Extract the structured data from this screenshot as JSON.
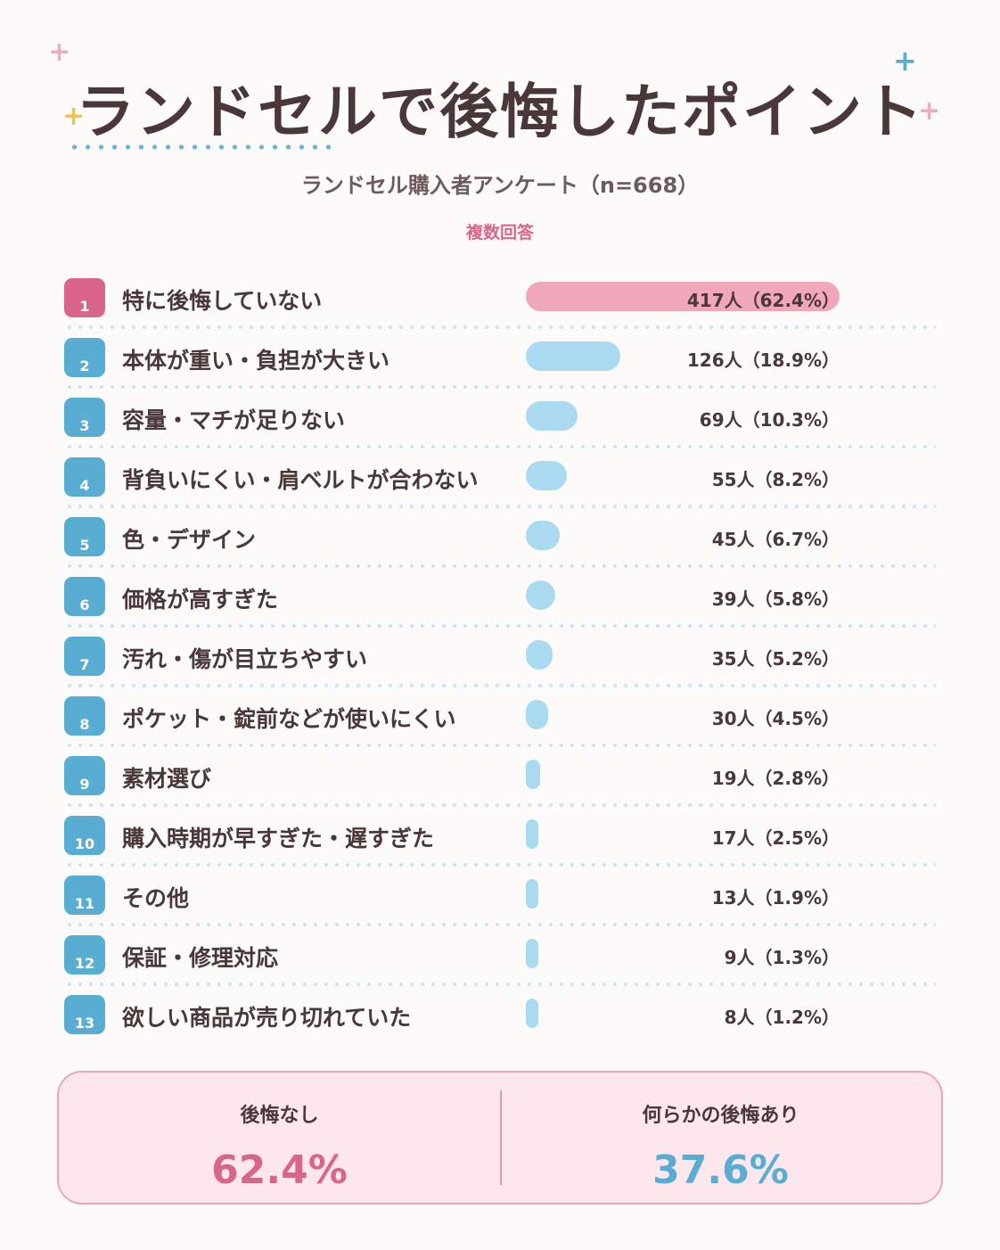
{
  "title": "ランドセルで後悔したポイント",
  "subtitle": "ランドセル購入者アンケート（n=668）",
  "note": "複数回答",
  "colors": {
    "accent_pink": "#d9668a",
    "accent_blue": "#5aadd2",
    "bar_pink": "#f1a7ba",
    "bar_blue": "#a9daf0"
  },
  "chart_data": {
    "type": "bar",
    "orientation": "horizontal",
    "ranks": [
      "1",
      "2",
      "3",
      "4",
      "5",
      "6",
      "7",
      "8",
      "9",
      "10",
      "11",
      "12",
      "13"
    ],
    "categories": [
      "特に後悔していない",
      "本体が重い・負担が大きい",
      "容量・マチが足りない",
      "背負いにくい・肩ベルトが合わない",
      "色・デザイン",
      "価格が高すぎた",
      "汚れ・傷が目立ちやすい",
      "ポケット・錠前などが使いにくい",
      "素材選び",
      "購入時期が早すぎた・遅すぎた",
      "その他",
      "保証・修理対応",
      "欲しい商品が売り切れていた"
    ],
    "values": [
      417,
      126,
      69,
      55,
      45,
      39,
      35,
      30,
      19,
      17,
      13,
      9,
      8
    ],
    "percent": [
      62.4,
      18.9,
      10.3,
      8.2,
      6.7,
      5.8,
      5.2,
      4.5,
      2.8,
      2.5,
      1.9,
      1.3,
      1.2
    ],
    "value_labels": [
      "417人（62.4%）",
      "126人（18.9%）",
      "69人（10.3%）",
      "55人（8.2%）",
      "45人（6.7%）",
      "39人（5.8%）",
      "35人（5.2%）",
      "30人（4.5%）",
      "19人（2.8%）",
      "17人（2.5%）",
      "13人（1.9%）",
      "9人（1.3%）",
      "8人（1.2%）"
    ],
    "title": "ランドセルで後悔したポイント",
    "xlim": [
      0,
      417
    ]
  },
  "summary": {
    "left_label": "後悔なし",
    "left_value": "62.4%",
    "right_label": "何らかの後悔あり",
    "right_value": "37.6%"
  }
}
